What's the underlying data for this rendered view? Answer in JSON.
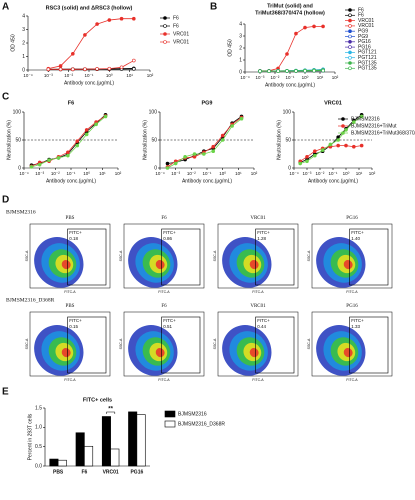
{
  "chart_data": [
    {
      "type": "line",
      "panel": "A",
      "title": "RSC3 (solid) and ΔRSC3 (hollow)",
      "y_label": "OD 450",
      "x_label": "Antibody conc.(μg/mL)",
      "xscale": "log",
      "x": [
        0.001,
        0.004,
        0.016,
        0.063,
        0.25,
        1,
        4,
        16
      ],
      "xlim": [
        0.0001,
        100
      ],
      "xticks": [
        {
          "value": 0.0001,
          "label": "10⁻⁴"
        },
        {
          "value": 0.001,
          "label": "10⁻³"
        },
        {
          "value": 0.01,
          "label": "10⁻²"
        },
        {
          "value": 0.1,
          "label": "10⁻¹"
        },
        {
          "value": 1,
          "label": "10⁰"
        },
        {
          "value": 10,
          "label": "10¹"
        },
        {
          "value": 100,
          "label": "10²"
        }
      ],
      "ylim": [
        0,
        4
      ],
      "yticks": [
        0,
        1,
        2,
        3,
        4
      ],
      "series": [
        {
          "name": "F6",
          "color": "#000000",
          "filled": true,
          "values": [
            0.05,
            0.05,
            0.06,
            0.06,
            0.07,
            0.08,
            0.1,
            0.12
          ]
        },
        {
          "name": "F6",
          "color": "#000000",
          "filled": false,
          "values": [
            0.04,
            0.05,
            0.05,
            0.05,
            0.06,
            0.06,
            0.07,
            0.08
          ]
        },
        {
          "name": "VRC01",
          "color": "#e8302a",
          "filled": true,
          "values": [
            0.1,
            0.3,
            1.2,
            2.6,
            3.4,
            3.7,
            3.8,
            3.8
          ]
        },
        {
          "name": "VRC01",
          "color": "#e8302a",
          "filled": false,
          "values": [
            0.05,
            0.05,
            0.05,
            0.06,
            0.08,
            0.1,
            0.2,
            0.7
          ]
        }
      ]
    },
    {
      "type": "line",
      "panel": "B",
      "title": [
        "TriMut (solid) and",
        "TriMut368/370/474 (hollow)"
      ],
      "y_label": "OD 450",
      "x_label": "Antibody conc.(μg/mL)",
      "xscale": "log",
      "x": [
        0.001,
        0.004,
        0.016,
        0.063,
        0.25,
        1,
        4,
        16
      ],
      "xlim": [
        0.0001,
        100
      ],
      "xticks": [
        {
          "value": 0.0001,
          "label": "10⁻⁴"
        },
        {
          "value": 0.001,
          "label": "10⁻³"
        },
        {
          "value": 0.01,
          "label": "10⁻²"
        },
        {
          "value": 0.1,
          "label": "10⁻¹"
        },
        {
          "value": 1,
          "label": "10⁰"
        },
        {
          "value": 10,
          "label": "10¹"
        },
        {
          "value": 100,
          "label": "10²"
        }
      ],
      "ylim": [
        0,
        4
      ],
      "yticks": [
        0,
        1,
        2,
        3,
        4
      ],
      "series": [
        {
          "name": "F6",
          "color": "#000000",
          "filled": true,
          "values": [
            0.08,
            0.08,
            0.09,
            0.1,
            0.1,
            0.12,
            0.15,
            0.2
          ]
        },
        {
          "name": "F6",
          "color": "#000000",
          "filled": false,
          "values": [
            0.07,
            0.07,
            0.08,
            0.08,
            0.09,
            0.1,
            0.12,
            0.15
          ]
        },
        {
          "name": "VRC01",
          "color": "#e8302a",
          "filled": true,
          "values": [
            0.1,
            0.1,
            0.3,
            1.5,
            3.2,
            3.7,
            3.8,
            3.8
          ]
        },
        {
          "name": "VRC01",
          "color": "#e8302a",
          "filled": false,
          "values": [
            0.07,
            0.07,
            0.08,
            0.08,
            0.09,
            0.1,
            0.1,
            0.12
          ]
        },
        {
          "name": "PG9",
          "color": "#1f4fd0",
          "filled": true,
          "values": [
            0.08,
            0.08,
            0.08,
            0.09,
            0.1,
            0.1,
            0.12,
            0.14
          ]
        },
        {
          "name": "PG9",
          "color": "#1f4fd0",
          "filled": false,
          "values": [
            0.07,
            0.07,
            0.08,
            0.08,
            0.08,
            0.09,
            0.1,
            0.11
          ]
        },
        {
          "name": "PG16",
          "color": "#4b2ea8",
          "filled": true,
          "values": [
            0.08,
            0.08,
            0.09,
            0.09,
            0.1,
            0.11,
            0.12,
            0.13
          ]
        },
        {
          "name": "PG16",
          "color": "#4b2ea8",
          "filled": false,
          "values": [
            0.07,
            0.07,
            0.07,
            0.08,
            0.08,
            0.09,
            0.1,
            0.1
          ]
        },
        {
          "name": "PGT121",
          "color": "#29b6e6",
          "filled": true,
          "values": [
            0.08,
            0.08,
            0.09,
            0.1,
            0.12,
            0.15,
            0.18,
            0.22
          ]
        },
        {
          "name": "PGT121",
          "color": "#29b6e6",
          "filled": false,
          "values": [
            0.07,
            0.07,
            0.08,
            0.08,
            0.09,
            0.1,
            0.12,
            0.14
          ]
        },
        {
          "name": "PGT135",
          "color": "#3cb44b",
          "filled": true,
          "values": [
            0.08,
            0.08,
            0.08,
            0.09,
            0.1,
            0.12,
            0.14,
            0.16
          ]
        },
        {
          "name": "PGT135",
          "color": "#3cb44b",
          "filled": false,
          "values": [
            0.07,
            0.07,
            0.07,
            0.08,
            0.08,
            0.09,
            0.1,
            0.11
          ]
        }
      ]
    },
    {
      "type": "line",
      "panel": "C",
      "title": "F6",
      "y_label": "Neutralization (%)",
      "x_label": "Antibody conc.(μg/mL)",
      "xscale": "log",
      "x": [
        0.0003,
        0.001,
        0.004,
        0.016,
        0.063,
        0.25,
        1,
        4,
        16
      ],
      "xlim": [
        0.0001,
        100
      ],
      "xticks": [
        {
          "value": 0.0001,
          "label": "10⁻⁴"
        },
        {
          "value": 0.001,
          "label": "10⁻³"
        },
        {
          "value": 0.01,
          "label": "10⁻²"
        },
        {
          "value": 0.1,
          "label": "10⁻¹"
        },
        {
          "value": 1,
          "label": "10⁰"
        },
        {
          "value": 10,
          "label": "10¹"
        },
        {
          "value": 100,
          "label": "10²"
        }
      ],
      "ylim": [
        0,
        100
      ],
      "yticks": [
        0,
        50,
        100
      ],
      "reference_line": 50,
      "series": [
        {
          "color": "#000000",
          "filled": true,
          "values": [
            5,
            8,
            15,
            18,
            25,
            45,
            65,
            80,
            95
          ]
        },
        {
          "color": "#e8302a",
          "filled": true,
          "values": [
            3,
            10,
            12,
            20,
            28,
            48,
            68,
            82,
            93
          ]
        },
        {
          "color": "#6cd44a",
          "filled": true,
          "values": [
            2,
            6,
            14,
            18,
            22,
            40,
            60,
            78,
            92
          ]
        }
      ]
    },
    {
      "type": "line",
      "title": "PG9",
      "y_label": "Neutralization (%)",
      "x_label": "Antibody conc.(μg/mL)",
      "xscale": "log",
      "x": [
        0.0003,
        0.001,
        0.004,
        0.016,
        0.063,
        0.25,
        1,
        4,
        16
      ],
      "xlim": [
        0.0001,
        100
      ],
      "xticks": [
        {
          "value": 0.0001,
          "label": "10⁻⁴"
        },
        {
          "value": 0.001,
          "label": "10⁻³"
        },
        {
          "value": 0.01,
          "label": "10⁻²"
        },
        {
          "value": 0.1,
          "label": "10⁻¹"
        },
        {
          "value": 1,
          "label": "10⁰"
        },
        {
          "value": 10,
          "label": "10¹"
        },
        {
          "value": 100,
          "label": "10²"
        }
      ],
      "ylim": [
        0,
        100
      ],
      "yticks": [
        0,
        50,
        100
      ],
      "reference_line": 50,
      "series": [
        {
          "color": "#000000",
          "filled": true,
          "values": [
            8,
            10,
            15,
            22,
            30,
            35,
            55,
            80,
            92
          ]
        },
        {
          "color": "#e8302a",
          "filled": true,
          "values": [
            2,
            12,
            18,
            20,
            28,
            38,
            58,
            78,
            90
          ]
        },
        {
          "color": "#6cd44a",
          "filled": true,
          "values": [
            0,
            8,
            20,
            25,
            25,
            30,
            50,
            75,
            88
          ]
        }
      ]
    },
    {
      "type": "line",
      "title": "VRC01",
      "y_label": "Neutralization (%)",
      "x_label": "Antibody conc.(μg/mL)",
      "xscale": "log",
      "x": [
        0.0003,
        0.001,
        0.004,
        0.016,
        0.063,
        0.25,
        1,
        4,
        16
      ],
      "xlim": [
        0.0001,
        100
      ],
      "xticks": [
        {
          "value": 0.0001,
          "label": "10⁻⁴"
        },
        {
          "value": 0.001,
          "label": "10⁻³"
        },
        {
          "value": 0.01,
          "label": "10⁻²"
        },
        {
          "value": 0.1,
          "label": "10⁻¹"
        },
        {
          "value": 1,
          "label": "10⁰"
        },
        {
          "value": 10,
          "label": "10¹"
        },
        {
          "value": 100,
          "label": "10²"
        }
      ],
      "ylim": [
        0,
        100
      ],
      "yticks": [
        0,
        50,
        100
      ],
      "reference_line": 50,
      "series": [
        {
          "name": "BJMSM2316",
          "color": "#000000",
          "filled": true,
          "values": [
            10,
            15,
            25,
            30,
            40,
            55,
            70,
            85,
            95
          ]
        },
        {
          "name": "BJMSM2316+TriMut",
          "color": "#e8302a",
          "filled": true,
          "values": [
            12,
            20,
            30,
            35,
            38,
            40,
            40,
            38,
            40
          ]
        },
        {
          "name": "BJMSM2316+TriMut368/370/474",
          "color": "#6cd44a",
          "filled": true,
          "values": [
            8,
            12,
            22,
            32,
            42,
            50,
            68,
            82,
            92
          ]
        }
      ]
    },
    {
      "type": "bar",
      "panel": "E",
      "title": "FITC+ cells",
      "y_label": "Percent in 293T cells",
      "annotation": "**",
      "categories": [
        "PBS",
        "F6",
        "VRC01",
        "PG16"
      ],
      "ylim": [
        0,
        1.5
      ],
      "yticks": [
        {
          "value": 0,
          "label": "0.0"
        },
        {
          "value": 0.5,
          "label": "0.5"
        },
        {
          "value": 1,
          "label": "1.0"
        },
        {
          "value": 1.5,
          "label": "1.5"
        }
      ],
      "series": [
        {
          "name": "BJMSM2316",
          "color": "#000000",
          "values": [
            0.18,
            0.86,
            1.28,
            1.4
          ]
        },
        {
          "name": "BJMSM2316_D368R",
          "color": "#ffffff",
          "values": [
            0.15,
            0.51,
            0.44,
            1.33
          ]
        }
      ]
    }
  ],
  "flow": {
    "panel": "D",
    "x_label": "FITC-A",
    "y_label": "SSC-A",
    "rows": [
      {
        "label": "BJMSM2316",
        "columns": [
          {
            "header": "PBS",
            "gate_label": "FITC+",
            "gate_value": "0.18"
          },
          {
            "header": "F6",
            "gate_label": "FITC+",
            "gate_value": "0.86"
          },
          {
            "header": "VRC01",
            "gate_label": "FITC+",
            "gate_value": "1.28"
          },
          {
            "header": "PG16",
            "gate_label": "FITC+",
            "gate_value": "1.40"
          }
        ]
      },
      {
        "label": "BJMSM2316_D368R",
        "columns": [
          {
            "header": "PBS",
            "gate_label": "FITC+",
            "gate_value": "0.15"
          },
          {
            "header": "F6",
            "gate_label": "FITC+",
            "gate_value": "0.51"
          },
          {
            "header": "VRC01",
            "gate_label": "FITC+",
            "gate_value": "0.44"
          },
          {
            "header": "PG16",
            "gate_label": "FITC+",
            "gate_value": "1.33"
          }
        ]
      }
    ]
  }
}
